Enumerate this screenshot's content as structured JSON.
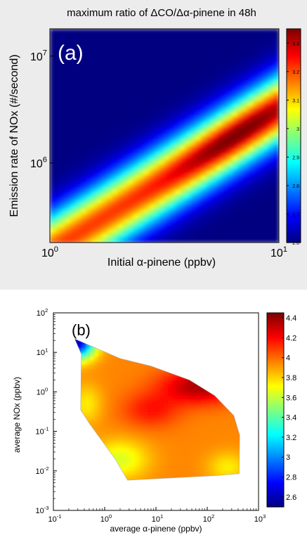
{
  "chart_data": [
    {
      "type": "heatmap",
      "panel_label": "(a)",
      "title": "maximum ratio of ΔCO/Δα-pinene in 48h",
      "xlabel": "Initial α-pinene (ppbv)",
      "ylabel": "Emission rate  of NOx (#/second)",
      "x_scale": "log",
      "y_scale": "log",
      "xlim": [
        1,
        10
      ],
      "ylim": [
        180000,
        18000000
      ],
      "x_ticks": [
        {
          "base": "10",
          "exp": "0"
        },
        {
          "base": "10",
          "exp": "1"
        }
      ],
      "y_ticks": [
        {
          "base": "10",
          "exp": "6",
          "value": 1000000
        },
        {
          "base": "10",
          "exp": "7",
          "value": 10000000
        }
      ],
      "colorbar": {
        "min": 2.6,
        "max": 3.35,
        "ticks": [
          "2.6",
          "2.7",
          "2.8",
          "2.9",
          "3",
          "3.1",
          "3.2",
          "3.3"
        ],
        "colormap": "jet",
        "position": "right"
      },
      "grid": false,
      "ridge": "high ratio band running diagonally from lower-left to upper-right; maximum near x=7, y=3e6; low (2.6) in upper-left and lower-right corners"
    },
    {
      "type": "heatmap",
      "panel_label": "(b)",
      "xlabel": "average α-pinene (ppbv)",
      "ylabel": "average NOx (ppbv)",
      "x_scale": "log",
      "y_scale": "log",
      "xlim": [
        0.1,
        1000
      ],
      "ylim": [
        0.001,
        100
      ],
      "x_ticks": [
        {
          "base": "10",
          "exp": "-1"
        },
        {
          "base": "10",
          "exp": "0"
        },
        {
          "base": "10",
          "exp": "1"
        },
        {
          "base": "10",
          "exp": "2"
        },
        {
          "base": "10",
          "exp": "3"
        }
      ],
      "y_ticks": [
        {
          "base": "10",
          "exp": "-3"
        },
        {
          "base": "10",
          "exp": "-2"
        },
        {
          "base": "10",
          "exp": "-1"
        },
        {
          "base": "10",
          "exp": "0"
        },
        {
          "base": "10",
          "exp": "1"
        },
        {
          "base": "10",
          "exp": "2"
        }
      ],
      "colorbar": {
        "min": 2.5,
        "max": 4.45,
        "ticks": [
          "2.6",
          "2.8",
          "3",
          "3.2",
          "3.4",
          "3.6",
          "3.8",
          "4",
          "4.2",
          "4.4"
        ],
        "colormap": "jet",
        "position": "right"
      },
      "grid": false,
      "domain_polygon": [
        [
          0.26,
          22
        ],
        [
          0.35,
          9
        ],
        [
          0.34,
          0.35
        ],
        [
          0.5,
          0.16
        ],
        [
          1.6,
          0.02
        ],
        [
          2.8,
          0.0058
        ],
        [
          130,
          0.0075
        ],
        [
          420,
          0.0085
        ],
        [
          430,
          0.08
        ],
        [
          330,
          0.25
        ],
        [
          140,
          0.8
        ],
        [
          45,
          2
        ],
        [
          8,
          4.5
        ],
        [
          2,
          7
        ],
        [
          0.26,
          22
        ]
      ],
      "features": "maximum (~4.4) near x=60-120, y=1-2; minimum (~2.6) at upper-left tip near x=0.3, y=20; mostly 3.8-4.2 across the domain"
    }
  ]
}
